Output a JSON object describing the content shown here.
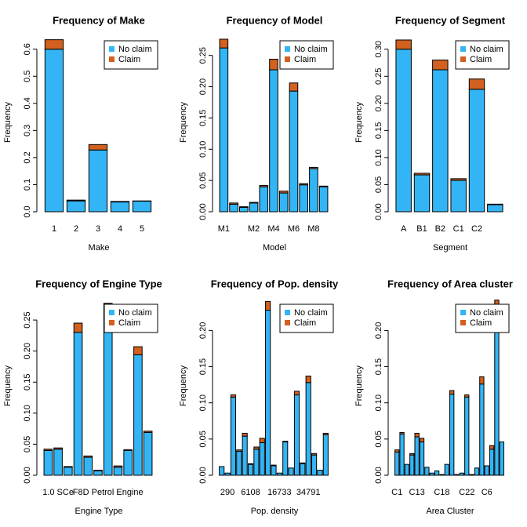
{
  "chart_data": [
    {
      "type": "bar",
      "stacked": true,
      "title": "Frequency of Make",
      "x_label": "Make",
      "y_label": "Frequency",
      "categories": [
        "1",
        "2",
        "3",
        "4",
        "5"
      ],
      "series": [
        {
          "name": "No claim",
          "color": "#33b5f5",
          "values": [
            0.6,
            0.04,
            0.228,
            0.036,
            0.039
          ]
        },
        {
          "name": "Claim",
          "color": "#d2601e",
          "values": [
            0.035,
            0.003,
            0.02,
            0.002,
            0.001
          ]
        }
      ],
      "ylim": [
        0,
        0.66
      ],
      "yticks": [
        {
          "value": 0,
          "label": "0.0"
        },
        0.1,
        0.2,
        0.3,
        0.4,
        0.5,
        0.6
      ],
      "legend": "top-right"
    },
    {
      "type": "bar",
      "stacked": true,
      "title": "Frequency of Model",
      "x_label": "Model",
      "y_label": "Frequency",
      "categories": [
        "M1",
        null,
        null,
        "M2",
        null,
        "M4",
        null,
        "M6",
        null,
        "M8",
        null
      ],
      "series": [
        {
          "name": "No claim",
          "color": "#33b5f5",
          "values": [
            0.262,
            0.012,
            0.007,
            0.014,
            0.04,
            0.227,
            0.03,
            0.193,
            0.043,
            0.069,
            0.04
          ]
        },
        {
          "name": "Claim",
          "color": "#d2601e",
          "values": [
            0.014,
            0.002,
            0.001,
            0.001,
            0.002,
            0.017,
            0.003,
            0.013,
            0.002,
            0.002,
            0.001
          ]
        }
      ],
      "ylim": [
        0,
        0.286
      ],
      "yticks": [
        {
          "value": 0,
          "label": "0.00"
        },
        0.05,
        {
          "value": 0.1,
          "label": "0.10"
        },
        0.15,
        {
          "value": 0.2,
          "label": "0.20"
        },
        0.25
      ],
      "legend": "top-right"
    },
    {
      "type": "bar",
      "stacked": true,
      "title": "Frequency of Segment",
      "x_label": "Segment",
      "y_label": "Frequency",
      "categories": [
        "A",
        "B1",
        "B2",
        "C1",
        "C2",
        null
      ],
      "series": [
        {
          "name": "No claim",
          "color": "#33b5f5",
          "values": [
            0.3,
            0.068,
            0.262,
            0.058,
            0.226,
            0.013
          ]
        },
        {
          "name": "Claim",
          "color": "#d2601e",
          "values": [
            0.017,
            0.003,
            0.018,
            0.003,
            0.019,
            0.001
          ]
        }
      ],
      "ylim": [
        0,
        0.33
      ],
      "yticks": [
        {
          "value": 0,
          "label": "0.00"
        },
        0.05,
        {
          "value": 0.1,
          "label": "0.10"
        },
        0.15,
        {
          "value": 0.2,
          "label": "0.20"
        },
        0.25,
        {
          "value": 0.3,
          "label": "0.30"
        }
      ],
      "legend": "top-right"
    },
    {
      "type": "bar",
      "stacked": true,
      "title": "Frequency of Engine Type",
      "x_label": "Engine Type",
      "y_label": "Frequency",
      "categories": [
        null,
        "1.0 SCe",
        null,
        null,
        null,
        null,
        "F8D Petrol Engine",
        null,
        null,
        null,
        null
      ],
      "series": [
        {
          "name": "No claim",
          "color": "#33b5f5",
          "values": [
            0.04,
            0.042,
            0.013,
            0.23,
            0.029,
            0.007,
            0.262,
            0.013,
            0.04,
            0.194,
            0.069
          ]
        },
        {
          "name": "Claim",
          "color": "#d2601e",
          "values": [
            0.002,
            0.002,
            0.001,
            0.015,
            0.002,
            0.001,
            0.015,
            0.002,
            0.001,
            0.013,
            0.002
          ]
        }
      ],
      "ylim": [
        0,
        0.288
      ],
      "yticks": [
        {
          "value": 0,
          "label": "0.00"
        },
        0.05,
        {
          "value": 0.1,
          "label": "0.10"
        },
        0.15,
        {
          "value": 0.2,
          "label": "0.20"
        },
        0.25
      ],
      "legend": "top-right"
    },
    {
      "type": "bar",
      "stacked": true,
      "title": "Frequency of Pop. density",
      "x_label": "Pop. density",
      "y_label": "Frequency",
      "categories": [
        null,
        "290",
        null,
        null,
        null,
        "6108",
        null,
        null,
        null,
        null,
        "16733",
        null,
        null,
        null,
        null,
        "34791",
        null,
        null,
        null
      ],
      "series": [
        {
          "name": "No claim",
          "color": "#33b5f5",
          "values": [
            0.012,
            0.003,
            0.108,
            0.033,
            0.054,
            0.015,
            0.036,
            0.045,
            0.228,
            0.013,
            0.003,
            0.046,
            0.01,
            0.111,
            0.016,
            0.128,
            0.028,
            0.007,
            0.056
          ]
        },
        {
          "name": "Claim",
          "color": "#d2601e",
          "values": [
            0,
            0,
            0.003,
            0.002,
            0.004,
            0.001,
            0.003,
            0.006,
            0.012,
            0.001,
            0,
            0.001,
            0,
            0.005,
            0.001,
            0.009,
            0.002,
            0,
            0.002
          ]
        }
      ],
      "ylim": [
        0,
        0.247
      ],
      "yticks": [
        {
          "value": 0,
          "label": "0.00"
        },
        0.05,
        {
          "value": 0.1,
          "label": "0.10"
        },
        0.15,
        {
          "value": 0.2,
          "label": "0.20"
        }
      ],
      "legend": "top-right"
    },
    {
      "type": "bar",
      "stacked": true,
      "title": "Frequency of Area cluster",
      "x_label": "Area Cluster",
      "y_label": "Frequency",
      "categories": [
        "C1",
        null,
        null,
        null,
        "C13",
        null,
        null,
        null,
        null,
        "C18",
        null,
        null,
        null,
        null,
        "C22",
        null,
        null,
        null,
        "C6",
        null,
        null,
        null
      ],
      "series": [
        {
          "name": "No claim",
          "color": "#33b5f5",
          "values": [
            0.032,
            0.057,
            0.015,
            0.028,
            0.053,
            0.046,
            0.011,
            0.003,
            0.006,
            0.001,
            0.015,
            0.112,
            0.001,
            0.003,
            0.108,
            0.001,
            0.01,
            0.126,
            0.013,
            0.036,
            0.23,
            0.046
          ]
        },
        {
          "name": "Claim",
          "color": "#d2601e",
          "values": [
            0.003,
            0.002,
            0,
            0.002,
            0.005,
            0.005,
            0,
            0,
            0,
            0,
            0,
            0.005,
            0,
            0,
            0.003,
            0,
            0,
            0.01,
            0,
            0.005,
            0.012,
            0
          ]
        }
      ],
      "ylim": [
        0,
        0.247
      ],
      "yticks": [
        {
          "value": 0,
          "label": "0.00"
        },
        0.05,
        {
          "value": 0.1,
          "label": "0.10"
        },
        0.15,
        {
          "value": 0.2,
          "label": "0.20"
        }
      ],
      "legend": "top-right"
    }
  ]
}
